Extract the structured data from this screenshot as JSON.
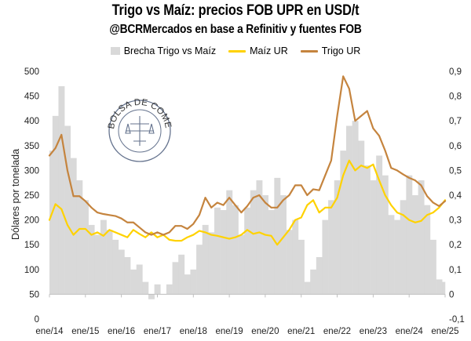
{
  "chart_data": {
    "type": "line",
    "title": "Trigo vs Maíz: precios FOB UPR en USD/t",
    "subtitle": "@BCRMercados en base a Refinitiv y fuentes FOB",
    "ylabel": "Dólares por tonelada",
    "ylim": [
      0,
      500
    ],
    "y2lim": [
      -0.1,
      0.9
    ],
    "yticks": [
      "0",
      "50",
      "100",
      "150",
      "200",
      "250",
      "300",
      "350",
      "400",
      "450",
      "500"
    ],
    "y2ticks": [
      "-0,1",
      "0",
      "0,1",
      "0,2",
      "0,3",
      "0,4",
      "0,5",
      "0,6",
      "0,7",
      "0,8",
      "0,9"
    ],
    "xticks": [
      "ene/14",
      "ene/15",
      "ene/16",
      "ene/17",
      "ene/18",
      "ene/19",
      "ene/20",
      "ene/21",
      "ene/22",
      "ene/23",
      "ene/24",
      "ene/25"
    ],
    "x": [
      "2014-01",
      "2014-03",
      "2014-05",
      "2014-07",
      "2014-09",
      "2014-11",
      "2015-01",
      "2015-03",
      "2015-05",
      "2015-07",
      "2015-09",
      "2015-11",
      "2016-01",
      "2016-03",
      "2016-05",
      "2016-07",
      "2016-09",
      "2016-11",
      "2017-01",
      "2017-03",
      "2017-05",
      "2017-07",
      "2017-09",
      "2017-11",
      "2018-01",
      "2018-03",
      "2018-05",
      "2018-07",
      "2018-09",
      "2018-11",
      "2019-01",
      "2019-03",
      "2019-05",
      "2019-07",
      "2019-09",
      "2019-11",
      "2020-01",
      "2020-03",
      "2020-05",
      "2020-07",
      "2020-09",
      "2020-11",
      "2021-01",
      "2021-03",
      "2021-05",
      "2021-07",
      "2021-09",
      "2021-11",
      "2022-01",
      "2022-03",
      "2022-05",
      "2022-07",
      "2022-09",
      "2022-11",
      "2023-01",
      "2023-03",
      "2023-05",
      "2023-07",
      "2023-09",
      "2023-11",
      "2024-01",
      "2024-03",
      "2024-05",
      "2024-07",
      "2024-09",
      "2024-11",
      "2025-01"
    ],
    "series": [
      {
        "name": "Brecha Trigo vs Maíz",
        "axis": "right",
        "type": "area",
        "color": "#d9d9d9",
        "values": [
          0.58,
          0.72,
          0.84,
          0.68,
          0.55,
          0.46,
          0.38,
          0.28,
          0.24,
          0.3,
          0.26,
          0.22,
          0.18,
          0.15,
          0.1,
          0.12,
          0.05,
          -0.02,
          0.04,
          0.0,
          0.04,
          0.13,
          0.16,
          0.08,
          0.1,
          0.2,
          0.28,
          0.25,
          0.35,
          0.34,
          0.42,
          0.36,
          0.24,
          0.35,
          0.42,
          0.46,
          0.4,
          0.34,
          0.47,
          0.4,
          0.26,
          0.3,
          0.22,
          0.05,
          0.1,
          0.15,
          0.3,
          0.38,
          0.46,
          0.58,
          0.68,
          0.7,
          0.62,
          0.52,
          0.46,
          0.56,
          0.48,
          0.32,
          0.3,
          0.38,
          0.48,
          0.4,
          0.46,
          0.36,
          0.22,
          0.06,
          0.05
        ]
      },
      {
        "name": "Maíz UR",
        "axis": "left",
        "type": "line",
        "color": "#ffd200",
        "values": [
          200,
          232,
          222,
          190,
          170,
          182,
          182,
          170,
          175,
          168,
          180,
          175,
          170,
          165,
          180,
          172,
          165,
          175,
          165,
          170,
          160,
          158,
          158,
          165,
          170,
          178,
          175,
          170,
          168,
          165,
          162,
          165,
          170,
          180,
          172,
          175,
          170,
          168,
          150,
          165,
          180,
          200,
          205,
          230,
          240,
          215,
          225,
          225,
          245,
          290,
          320,
          300,
          310,
          305,
          312,
          280,
          250,
          230,
          215,
          210,
          200,
          195,
          198,
          210,
          215,
          225,
          240
        ]
      },
      {
        "name": "Trigo UR",
        "axis": "left",
        "type": "line",
        "color": "#c5843e",
        "values": [
          330,
          345,
          372,
          300,
          248,
          248,
          238,
          225,
          215,
          212,
          210,
          208,
          203,
          195,
          195,
          185,
          175,
          170,
          175,
          170,
          175,
          188,
          188,
          182,
          192,
          210,
          245,
          225,
          235,
          230,
          245,
          230,
          215,
          228,
          245,
          250,
          235,
          225,
          225,
          240,
          250,
          270,
          270,
          250,
          262,
          260,
          290,
          320,
          410,
          490,
          465,
          400,
          410,
          420,
          385,
          370,
          340,
          305,
          300,
          292,
          285,
          280,
          270,
          248,
          235,
          228,
          238
        ]
      }
    ],
    "legend_position": "top",
    "grid": false
  },
  "watermark": {
    "text": "BOLSA DE COMERCIO DE ROSARIO"
  }
}
